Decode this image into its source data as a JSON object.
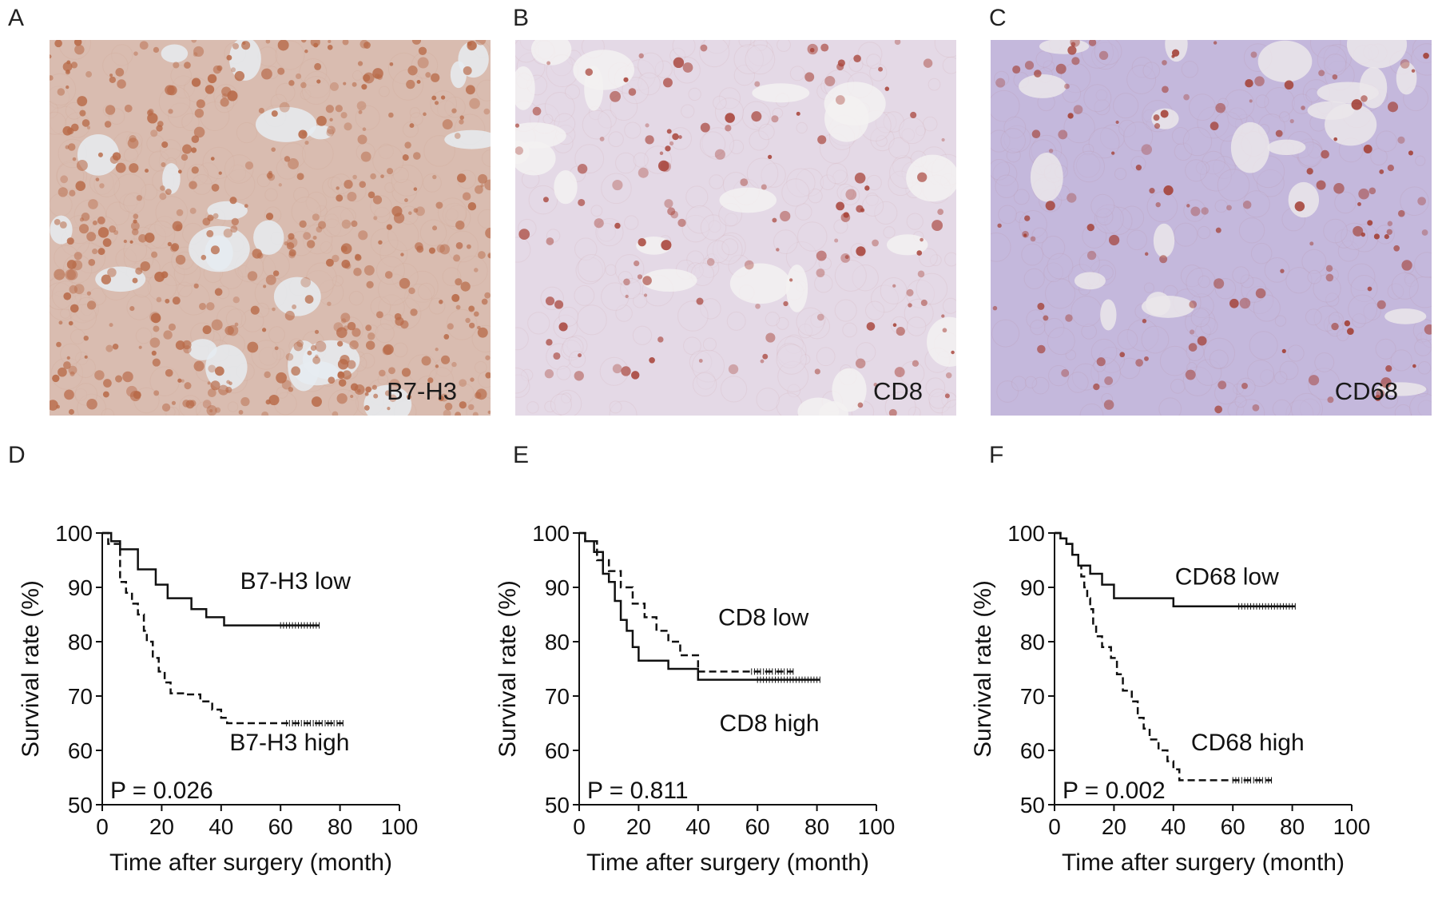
{
  "panels": {
    "A": {
      "letter": "A",
      "stain": "B7-H3"
    },
    "B": {
      "letter": "B",
      "stain": "CD8"
    },
    "C": {
      "letter": "C",
      "stain": "CD68"
    },
    "D": {
      "letter": "D"
    },
    "E": {
      "letter": "E"
    },
    "F": {
      "letter": "F"
    }
  },
  "ihc_colors": {
    "B7-H3": {
      "background": "#d9bcb0",
      "lumen": "#e6ecf1",
      "nuclei": "#b86a48"
    },
    "CD8": {
      "background": "#e4d9e6",
      "lumen": "#f3f1f1",
      "nuclei": "#a8443a"
    },
    "CD68": {
      "background": "#c4b8dc",
      "lumen": "#ebe6ea",
      "nuclei": "#a33f34"
    }
  },
  "chart_data": [
    {
      "type": "line",
      "panel": "D",
      "xlabel": "Time after surgery (month)",
      "ylabel": "Survival rate (%)",
      "xlim": [
        0,
        100
      ],
      "ylim": [
        50,
        100
      ],
      "xticks": [
        "0",
        "20",
        "40",
        "60",
        "80",
        "100"
      ],
      "yticks": [
        "50",
        "60",
        "70",
        "80",
        "90",
        "100"
      ],
      "pvalue": "P = 0.026",
      "series": [
        {
          "name": "B7-H3 low",
          "style": "solid",
          "x": [
            0,
            3,
            6,
            12,
            18,
            22,
            30,
            35,
            41,
            73
          ],
          "y": [
            100,
            98.5,
            97,
            93.3,
            90.5,
            88,
            86,
            84.5,
            83,
            83
          ],
          "censor_range": [
            60,
            73
          ]
        },
        {
          "name": "B7-H3 high",
          "style": "dashed",
          "x": [
            0,
            2,
            6,
            8,
            10,
            12,
            14,
            15,
            17,
            19,
            21,
            23,
            28,
            33,
            37,
            40,
            42,
            81
          ],
          "y": [
            100,
            98,
            91,
            89,
            87,
            85,
            82,
            80,
            77,
            74.5,
            72.5,
            70.5,
            70.3,
            69,
            67.5,
            66,
            65,
            65
          ],
          "censor_range": [
            62,
            81
          ]
        }
      ],
      "annotations": [
        {
          "text": "B7-H3 low",
          "x": 65,
          "y": 89.7
        },
        {
          "text": "B7-H3 high",
          "x": 63,
          "y": 60
        }
      ]
    },
    {
      "type": "line",
      "panel": "E",
      "xlabel": "Time after surgery (month)",
      "ylabel": "Survival rate (%)",
      "xlim": [
        0,
        100
      ],
      "ylim": [
        50,
        100
      ],
      "xticks": [
        "0",
        "20",
        "40",
        "60",
        "80",
        "100"
      ],
      "yticks": [
        "50",
        "60",
        "70",
        "80",
        "90",
        "100"
      ],
      "pvalue": "P = 0.811",
      "series": [
        {
          "name": "CD8 high",
          "style": "solid",
          "x": [
            0,
            2,
            5,
            8,
            10,
            12,
            14,
            16,
            18,
            20,
            30,
            40,
            81
          ],
          "y": [
            100,
            98.5,
            96.5,
            92.5,
            91,
            87.5,
            84,
            82,
            79,
            76.5,
            75,
            73,
            73
          ],
          "censor_range": [
            60,
            81
          ]
        },
        {
          "name": "CD8 low",
          "style": "dashed",
          "x": [
            0,
            2,
            6,
            10,
            14,
            18,
            22,
            26,
            30,
            34,
            40,
            72
          ],
          "y": [
            100,
            98.5,
            95,
            93,
            90,
            87,
            84.5,
            82,
            80,
            77.5,
            74.5,
            74.5
          ],
          "censor_range": [
            58,
            72
          ]
        }
      ],
      "annotations": [
        {
          "text": "CD8 low",
          "x": 62,
          "y": 83
        },
        {
          "text": "CD8 high",
          "x": 64,
          "y": 63.5
        }
      ]
    },
    {
      "type": "line",
      "panel": "F",
      "xlabel": "Time after surgery (month)",
      "ylabel": "Survival rate (%)",
      "xlim": [
        0,
        100
      ],
      "ylim": [
        50,
        100
      ],
      "xticks": [
        "0",
        "20",
        "40",
        "60",
        "80",
        "100"
      ],
      "yticks": [
        "50",
        "60",
        "70",
        "80",
        "90",
        "100"
      ],
      "pvalue": "P = 0.002",
      "series": [
        {
          "name": "CD68 low",
          "style": "solid",
          "x": [
            0,
            2,
            4,
            6,
            8,
            12,
            16,
            20,
            40,
            81
          ],
          "y": [
            100,
            99,
            98,
            96,
            94,
            92.5,
            90.5,
            88,
            86.5,
            86.5
          ],
          "censor_range": [
            62,
            81
          ]
        },
        {
          "name": "CD68 high",
          "style": "dashed",
          "x": [
            0,
            2,
            4,
            6,
            8,
            9,
            10,
            11,
            12,
            13,
            14,
            16,
            19,
            21,
            23,
            26,
            28,
            30,
            32,
            35,
            38,
            40,
            42,
            73
          ],
          "y": [
            100,
            99,
            98,
            96,
            94,
            92,
            90,
            88,
            86,
            83,
            81,
            79,
            77,
            74,
            71,
            69,
            66,
            64,
            62,
            60,
            58,
            56.5,
            54.5,
            54.5
          ],
          "censor_range": [
            60,
            73
          ]
        }
      ],
      "annotations": [
        {
          "text": "CD68 low",
          "x": 58,
          "y": 90.5
        },
        {
          "text": "CD68 high",
          "x": 65,
          "y": 60
        }
      ]
    }
  ]
}
